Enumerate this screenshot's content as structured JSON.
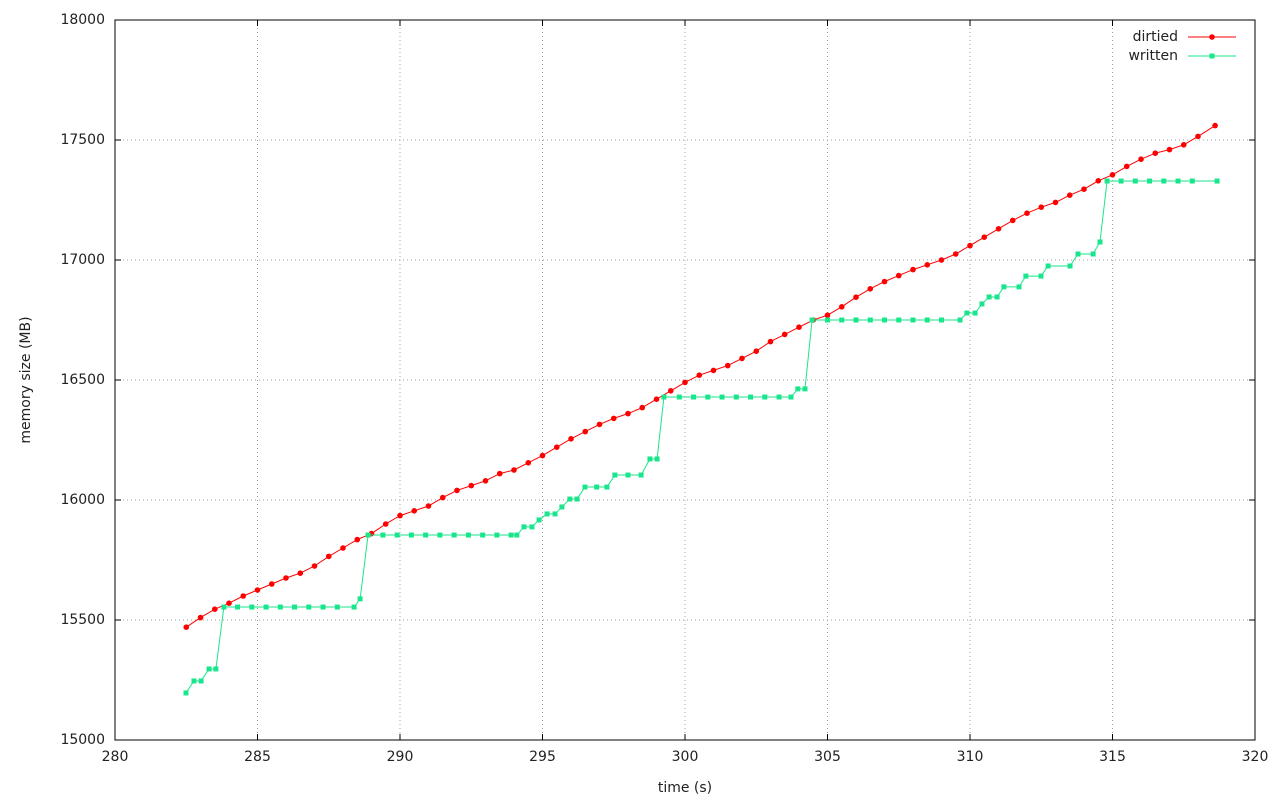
{
  "chart_data": {
    "type": "line",
    "x_label": "time (s)",
    "y_label": "memory size (MB)",
    "xlim": [
      280,
      320
    ],
    "xticks": [
      280,
      285,
      290,
      295,
      300,
      305,
      310,
      315,
      320
    ],
    "ylim": [
      15000,
      18000
    ],
    "yticks": [
      15000,
      15500,
      16000,
      16500,
      17000,
      17500,
      18000
    ],
    "grid": true,
    "legend": "top-right",
    "series": [
      {
        "name": "dirtied",
        "color": "#ff0000",
        "marker": "circle",
        "x": [
          282.5,
          283.0,
          283.5,
          284.0,
          284.5,
          285,
          285.5,
          286,
          286.5,
          287,
          287.5,
          288,
          288.5,
          289,
          289.5,
          290,
          290.5,
          291,
          291.5,
          292,
          292.5,
          293,
          293.5,
          294,
          294.5,
          295,
          295.5,
          296,
          296.5,
          297,
          297.5,
          298,
          298.5,
          299,
          299.5,
          300,
          300.5,
          301,
          301.5,
          302,
          302.5,
          303,
          303.5,
          304,
          304.5,
          305,
          305.5,
          306,
          306.5,
          307,
          307.5,
          308,
          308.5,
          309,
          309.5,
          310,
          310.5,
          311,
          311.5,
          312,
          312.5,
          313,
          313.5,
          314,
          314.5,
          315,
          315.5,
          316,
          316.5,
          317,
          317.5,
          318,
          318.6
        ],
        "values": [
          15470,
          15510,
          15545,
          15570,
          15600,
          15625,
          15650,
          15675,
          15695,
          15725,
          15765,
          15800,
          15835,
          15860,
          15900,
          15935,
          15955,
          15975,
          16010,
          16040,
          16060,
          16080,
          16110,
          16125,
          16155,
          16185,
          16220,
          16255,
          16285,
          16315,
          16340,
          16360,
          16385,
          16420,
          16455,
          16490,
          16520,
          16540,
          16560,
          16590,
          16620,
          16660,
          16690,
          16720,
          16750,
          16770,
          16805,
          16845,
          16880,
          16910,
          16935,
          16960,
          16980,
          17000,
          17025,
          17060,
          17095,
          17130,
          17165,
          17195,
          17220,
          17240,
          17270,
          17295,
          17330,
          17355,
          17390,
          17420,
          17445,
          17460,
          17480,
          17515,
          17560
        ]
      },
      {
        "name": "written",
        "color": "#19e68c",
        "marker": "square",
        "x": [
          282.49,
          282.77,
          283.02,
          283.3,
          283.54,
          283.82,
          284.3,
          284.8,
          285.3,
          285.8,
          286.3,
          286.8,
          287.3,
          287.8,
          288.39,
          288.6,
          288.88,
          289.4,
          289.9,
          290.4,
          290.9,
          291.4,
          291.9,
          292.4,
          292.9,
          293.4,
          293.9,
          294.1,
          294.35,
          294.63,
          294.88,
          295.16,
          295.44,
          295.68,
          295.96,
          296.21,
          296.49,
          296.9,
          297.26,
          297.54,
          298.0,
          298.46,
          298.77,
          299.02,
          299.26,
          299.8,
          300.3,
          300.8,
          301.3,
          301.8,
          302.3,
          302.8,
          303.3,
          303.72,
          303.96,
          304.21,
          304.46,
          305.0,
          305.5,
          306.0,
          306.5,
          307.0,
          307.5,
          308.0,
          308.5,
          309.0,
          309.65,
          309.89,
          310.18,
          310.42,
          310.67,
          310.95,
          311.19,
          311.72,
          311.96,
          312.49,
          312.74,
          313.51,
          313.79,
          314.32,
          314.56,
          314.81,
          315.3,
          315.8,
          316.3,
          316.8,
          317.3,
          317.8,
          318.67
        ],
        "values": [
          15196,
          15246,
          15246,
          15296,
          15296,
          15554,
          15554,
          15554,
          15554,
          15554,
          15554,
          15554,
          15554,
          15554,
          15554,
          15588,
          15854,
          15854,
          15854,
          15854,
          15854,
          15854,
          15854,
          15854,
          15854,
          15854,
          15854,
          15854,
          15888,
          15888,
          15917,
          15942,
          15942,
          15971,
          16004,
          16004,
          16054,
          16054,
          16054,
          16104,
          16104,
          16104,
          16171,
          16171,
          16429,
          16429,
          16429,
          16429,
          16429,
          16429,
          16429,
          16429,
          16429,
          16429,
          16463,
          16463,
          16750,
          16750,
          16750,
          16750,
          16750,
          16750,
          16750,
          16750,
          16750,
          16750,
          16750,
          16779,
          16779,
          16817,
          16846,
          16846,
          16888,
          16888,
          16933,
          16933,
          16975,
          16975,
          17025,
          17025,
          17075,
          17329,
          17329,
          17329,
          17329,
          17329,
          17329,
          17329,
          17329
        ]
      }
    ]
  }
}
